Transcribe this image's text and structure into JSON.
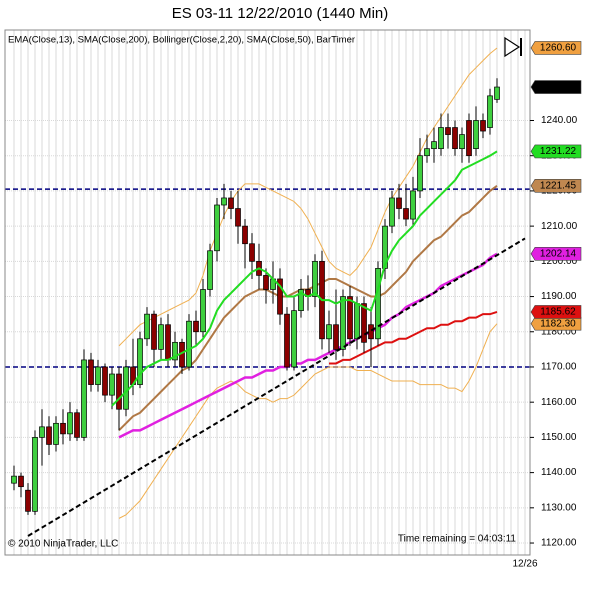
{
  "chart_data": {
    "type": "candlestick",
    "title": "ES 03-11  12/22/2010 (1440 Min)",
    "legend_text": "EMA(Close,13), SMA(Close,200), Bollinger(Close,2,20), SMA(Close,50), BarTimer",
    "copyright": "© 2010 NinjaTrader, LLC",
    "timer_text": "Time remaining = 04:03:11",
    "categories": [
      null,
      null,
      null,
      null,
      null,
      null,
      null,
      null,
      null,
      null,
      null,
      null,
      null,
      null,
      null,
      null,
      null,
      null,
      null,
      null,
      null,
      null,
      null,
      null,
      null,
      null,
      null,
      null,
      null,
      null,
      null,
      null,
      null,
      null,
      null,
      null,
      null,
      null,
      null,
      null,
      null,
      null,
      null,
      null,
      null,
      null,
      null,
      null,
      null,
      null,
      null,
      null,
      null,
      null,
      null,
      null,
      null,
      null,
      null,
      null,
      null,
      null,
      null,
      null,
      null,
      null,
      null,
      null,
      null,
      null,
      null,
      null,
      null,
      "12/26"
    ],
    "open": [
      1137,
      1139,
      1135,
      1129,
      1150,
      1153,
      1148,
      1154,
      1151,
      1157,
      1150,
      1172,
      1165,
      1170,
      1162,
      1168,
      1158,
      1170,
      1165,
      1178,
      1185,
      1175,
      1182,
      1172,
      1177,
      1170,
      1183,
      1180,
      1192,
      1203,
      1216,
      1218,
      1215,
      1210,
      1205,
      1200,
      1196,
      1192,
      1195,
      1185,
      1170,
      1186,
      1192,
      1190,
      1200,
      1178,
      1182,
      1175,
      1190,
      1178,
      1188,
      1182,
      1178,
      1198,
      1210,
      1218,
      1215,
      1212,
      1220,
      1230,
      1232,
      1232,
      1238,
      1238,
      1232,
      1240,
      1232,
      1240,
      1238,
      1246,
      null,
      null,
      null,
      null
    ],
    "high": [
      1142,
      1140,
      1137,
      1152,
      1158,
      1156,
      1156,
      1158,
      1160,
      1158,
      1175,
      1174,
      1172,
      1171,
      1170,
      1170,
      1172,
      1178,
      1180,
      1187,
      1186,
      1184,
      1185,
      1180,
      1178,
      1185,
      1186,
      1195,
      1205,
      1218,
      1222,
      1220,
      1220,
      1212,
      1208,
      1205,
      1198,
      1200,
      1198,
      1187,
      1190,
      1195,
      1196,
      1202,
      1203,
      1186,
      1192,
      1192,
      1193,
      1190,
      1190,
      1187,
      1200,
      1212,
      1220,
      1222,
      1222,
      1224,
      1235,
      1236,
      1238,
      1242,
      1242,
      1240,
      1238,
      1242,
      1244,
      1242,
      1249,
      1252,
      null,
      null,
      null,
      null
    ],
    "low": [
      1135,
      1133,
      1128,
      1128,
      1142,
      1145,
      1146,
      1148,
      1149,
      1149,
      1149,
      1163,
      1163,
      1160,
      1158,
      1152,
      1156,
      1162,
      1164,
      1176,
      1170,
      1172,
      1170,
      1170,
      1168,
      1169,
      1176,
      1178,
      1190,
      1200,
      1212,
      1212,
      1205,
      1198,
      1195,
      1192,
      1188,
      1188,
      1182,
      1169,
      1169,
      1184,
      1186,
      1187,
      1175,
      1174,
      1172,
      1173,
      1176,
      1175,
      1174,
      1170,
      1176,
      1195,
      1208,
      1212,
      1210,
      1210,
      1218,
      1228,
      1228,
      1230,
      1232,
      1230,
      1228,
      1228,
      1230,
      1235,
      1236,
      1245,
      null,
      null,
      null,
      null
    ],
    "close": [
      1139,
      1136,
      1129,
      1150,
      1153,
      1148,
      1154,
      1151,
      1157,
      1150,
      1172,
      1165,
      1170,
      1162,
      1168,
      1158,
      1170,
      1165,
      1178,
      1185,
      1175,
      1182,
      1172,
      1177,
      1170,
      1183,
      1180,
      1192,
      1203,
      1216,
      1218,
      1215,
      1210,
      1205,
      1200,
      1196,
      1192,
      1195,
      1185,
      1170,
      1186,
      1192,
      1190,
      1200,
      1178,
      1182,
      1175,
      1190,
      1178,
      1188,
      1177,
      1178,
      1198,
      1210,
      1218,
      1215,
      1212,
      1220,
      1230,
      1232,
      1234,
      1238,
      1236,
      1232,
      1236,
      1230,
      1240,
      1237,
      1247,
      1249.5,
      null,
      null,
      null,
      null
    ],
    "close_label": "1249.50",
    "up_color": "#3fcf3f",
    "down_color": "#8b0000",
    "overlays": [
      {
        "color": "#f0b050",
        "width": 1,
        "label_color": "#f0a040",
        "last_label": "1260.60",
        "values": [
          null,
          null,
          null,
          null,
          null,
          null,
          null,
          null,
          null,
          null,
          null,
          null,
          null,
          null,
          null,
          1176,
          1178,
          1180,
          1182,
          1183,
          1184,
          1185,
          1186,
          1187,
          1188,
          1189,
          1191,
          1196,
          1203,
          1208,
          1213,
          1217,
          1220,
          1222,
          1222,
          1222,
          1221,
          1220,
          1219,
          1218,
          1217,
          1215,
          1212,
          1208,
          1204,
          1200,
          1198,
          1197,
          1196,
          1198,
          1201,
          1204,
          1209,
          1214,
          1218,
          1221,
          1224,
          1227,
          1231,
          1235,
          1238,
          1241,
          1244,
          1247,
          1250,
          1253,
          1255,
          1257,
          1259,
          1260.6,
          null,
          null,
          null,
          null
        ]
      },
      {
        "color": "#f0b050",
        "width": 1,
        "label_color": "#f0a040",
        "last_label": "1182.30",
        "values": [
          null,
          null,
          null,
          null,
          null,
          null,
          null,
          null,
          null,
          null,
          null,
          null,
          null,
          null,
          null,
          1127,
          1128,
          1130,
          1132,
          1135,
          1138,
          1141,
          1144,
          1147,
          1150,
          1153,
          1156,
          1159,
          1162,
          1164,
          1165,
          1166,
          1165,
          1163,
          1162,
          1161,
          1161,
          1160,
          1161,
          1161,
          1162,
          1164,
          1166,
          1168,
          1169,
          1170,
          1170,
          1170,
          1170,
          1169,
          1169,
          1169,
          1168,
          1167,
          1166,
          1166,
          1166,
          1166,
          1165,
          1165,
          1165,
          1165,
          1164,
          1164,
          1163,
          1166,
          1170,
          1175,
          1180,
          1182.3,
          null,
          null,
          null,
          null
        ]
      },
      {
        "color": "#b07845",
        "width": 2,
        "label_color": "#c08850",
        "last_label": "1221.45",
        "values": [
          null,
          null,
          null,
          null,
          null,
          null,
          null,
          null,
          null,
          null,
          null,
          null,
          null,
          null,
          null,
          1152,
          1154,
          1156,
          1157,
          1159,
          1161,
          1163,
          1165,
          1167,
          1169,
          1170,
          1172,
          1175,
          1178,
          1181,
          1184,
          1186,
          1188,
          1190,
          1191,
          1192,
          1192,
          1191,
          1190,
          1190,
          1191,
          1192,
          1192,
          1193,
          1194,
          1195,
          1195,
          1194,
          1193,
          1192,
          1191,
          1190,
          1190,
          1191,
          1193,
          1195,
          1197,
          1200,
          1202,
          1204,
          1206,
          1207,
          1209,
          1211,
          1213,
          1214,
          1216,
          1218,
          1220,
          1221.45,
          null,
          null,
          null,
          null
        ]
      },
      {
        "color": "#e020e0",
        "width": 2.5,
        "label_color": "#e020e0",
        "last_label": "1202.14",
        "values": [
          null,
          null,
          null,
          null,
          null,
          null,
          null,
          null,
          null,
          null,
          null,
          null,
          null,
          null,
          null,
          1150,
          1151,
          1152,
          1152,
          1153,
          1154,
          1155,
          1156,
          1157,
          1158,
          1159,
          1160,
          1161,
          1162,
          1163,
          1164,
          1165,
          1166,
          1167,
          1167,
          1168,
          1169,
          1169,
          1170,
          1170,
          1171,
          1171,
          1172,
          1172,
          1173,
          1174,
          1175,
          1176,
          1177,
          1178,
          1179,
          1180,
          1181,
          1182,
          1184,
          1185,
          1187,
          1188,
          1189,
          1190,
          1191,
          1193,
          1194,
          1195,
          1196,
          1197,
          1198,
          1199,
          1201,
          1202.14,
          null,
          null,
          null,
          null
        ]
      },
      {
        "color": "#dd1010",
        "width": 2,
        "label_color": "#dd1010",
        "last_label": "1185.62",
        "values": [
          null,
          null,
          null,
          null,
          null,
          null,
          null,
          null,
          null,
          null,
          null,
          null,
          null,
          null,
          null,
          null,
          null,
          null,
          null,
          null,
          null,
          null,
          null,
          null,
          null,
          null,
          null,
          null,
          null,
          null,
          null,
          null,
          null,
          null,
          null,
          null,
          null,
          null,
          null,
          null,
          null,
          null,
          null,
          null,
          null,
          1171,
          1171,
          1172,
          1172,
          1173,
          1174,
          1175,
          1176,
          1177,
          1177,
          1178,
          1178,
          1179,
          1180,
          1181,
          1181,
          1182,
          1182,
          1183,
          1183,
          1184,
          1184,
          1185,
          1185,
          1185.62,
          null,
          null,
          null,
          null
        ]
      },
      {
        "color": "#22dd22",
        "width": 2,
        "label_color": "#22dd22",
        "last_label": "1231.22",
        "values": [
          null,
          null,
          null,
          null,
          null,
          null,
          null,
          null,
          null,
          null,
          null,
          null,
          null,
          null,
          1159,
          1161,
          1163,
          1165,
          1168,
          1170,
          1171,
          1172,
          1172,
          1173,
          1174,
          1175,
          1176,
          1178,
          1181,
          1186,
          1189,
          1191,
          1193,
          1195,
          1197,
          1198,
          1197,
          1195,
          1193,
          1190,
          1190,
          1191,
          1190,
          1191,
          1189,
          1189,
          1188,
          1189,
          1189,
          1188,
          1187,
          1186,
          1192,
          1199,
          1203,
          1206,
          1208,
          1210,
          1213,
          1215,
          1217,
          1219,
          1221,
          1223,
          1226,
          1227,
          1228,
          1229,
          1230,
          1231.22,
          null,
          null,
          null,
          null
        ]
      }
    ],
    "hlines": [
      1220.5,
      1170
    ],
    "hline_color": "#000080",
    "trendline": {
      "x": [
        2,
        73
      ],
      "y": [
        1122,
        1206.5
      ]
    },
    "ylim": [
      1116.6,
      1265.7
    ],
    "yticks": [
      {
        "value": 1120,
        "label": "1120.00"
      },
      {
        "value": 1130,
        "label": "1130.00"
      },
      {
        "value": 1140,
        "label": "1140.00"
      },
      {
        "value": 1150,
        "label": "1150.00"
      },
      {
        "value": 1160,
        "label": "1160.00"
      },
      {
        "value": 1170,
        "label": "1170.00"
      },
      {
        "value": 1180,
        "label": "1180.00"
      },
      {
        "value": 1190,
        "label": "1190.00"
      },
      {
        "value": 1200,
        "label": "1200.00"
      },
      {
        "value": 1210,
        "label": "1210.00"
      },
      {
        "value": 1220,
        "label": "1220.00"
      },
      {
        "value": 1230,
        "label": "1230.00"
      },
      {
        "value": 1240,
        "label": "1240.00"
      }
    ],
    "grid": true
  }
}
